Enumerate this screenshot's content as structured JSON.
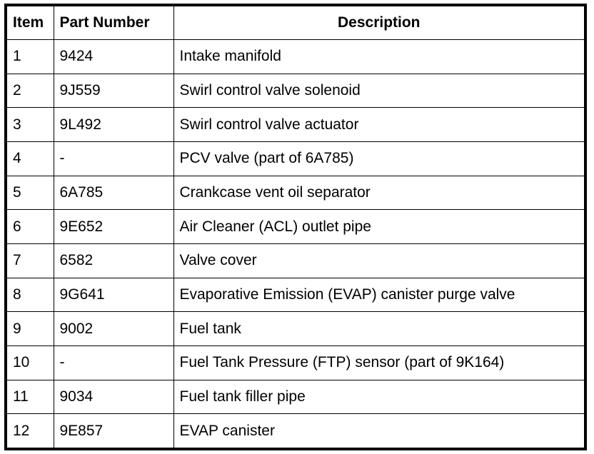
{
  "table": {
    "headers": [
      "Item",
      "Part Number",
      "Description"
    ],
    "rows": [
      [
        "1",
        "9424",
        "Intake manifold"
      ],
      [
        "2",
        "9J559",
        "Swirl control valve solenoid"
      ],
      [
        "3",
        "9L492",
        "Swirl control valve actuator"
      ],
      [
        "4",
        "-",
        "PCV valve (part of 6A785)"
      ],
      [
        "5",
        "6A785",
        "Crankcase vent oil separator"
      ],
      [
        "6",
        "9E652",
        "Air Cleaner (ACL) outlet pipe"
      ],
      [
        "7",
        "6582",
        "Valve cover"
      ],
      [
        "8",
        "9G641",
        "Evaporative Emission (EVAP) canister purge valve"
      ],
      [
        "9",
        "9002",
        "Fuel tank"
      ],
      [
        "10",
        "-",
        "Fuel Tank Pressure (FTP) sensor (part of 9K164)"
      ],
      [
        "11",
        "9034",
        "Fuel tank filler pipe"
      ],
      [
        "12",
        "9E857",
        "EVAP canister"
      ]
    ]
  }
}
